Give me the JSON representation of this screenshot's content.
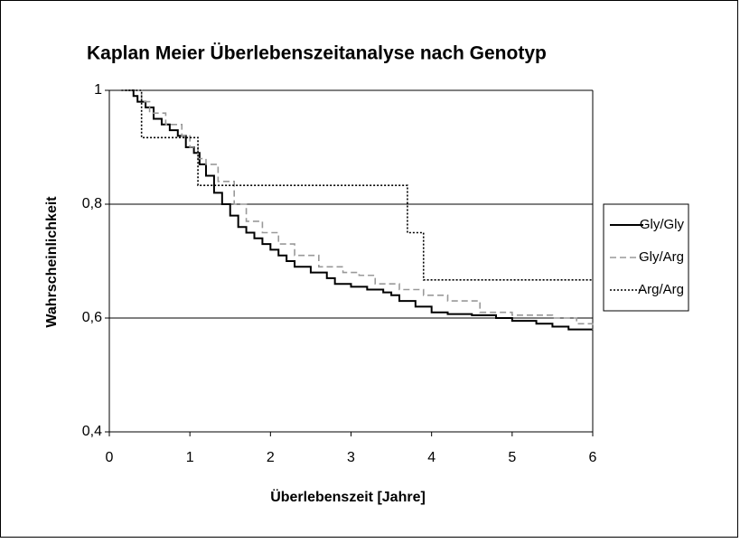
{
  "chart_data": {
    "type": "step",
    "title": "Kaplan Meier Überlebenszeitanalyse nach Genotyp",
    "x_label": "Überlebenszeit [Jahre]",
    "y_label": "Wahrscheinlichkeit",
    "xlim": [
      0,
      6
    ],
    "xticks": [
      0,
      1,
      2,
      3,
      4,
      5,
      6
    ],
    "ylim": [
      0.4,
      1
    ],
    "yticks": [
      {
        "value": 0.4,
        "label": "0,4"
      },
      {
        "value": 0.6,
        "label": "0,6"
      },
      {
        "value": 0.8,
        "label": "0,8"
      },
      1
    ],
    "grid": true,
    "legend": "right",
    "series": [
      {
        "name": "Gly/Gly",
        "color": "#000000",
        "style": "solid",
        "x": [
          0.2,
          0.3,
          0.35,
          0.45,
          0.55,
          0.65,
          0.75,
          0.85,
          0.95,
          1.05,
          1.12,
          1.2,
          1.3,
          1.4,
          1.5,
          1.6,
          1.7,
          1.8,
          1.9,
          2.0,
          2.1,
          2.2,
          2.3,
          2.5,
          2.7,
          2.8,
          3.0,
          3.2,
          3.4,
          3.5,
          3.6,
          3.8,
          4.0,
          4.2,
          4.5,
          4.8,
          5.0,
          5.3,
          5.5,
          5.7,
          6.0
        ],
        "values": [
          1,
          0.99,
          0.98,
          0.97,
          0.95,
          0.94,
          0.93,
          0.92,
          0.9,
          0.89,
          0.87,
          0.85,
          0.82,
          0.8,
          0.78,
          0.76,
          0.75,
          0.74,
          0.73,
          0.72,
          0.71,
          0.7,
          0.69,
          0.68,
          0.67,
          0.66,
          0.655,
          0.65,
          0.645,
          0.64,
          0.63,
          0.62,
          0.61,
          0.607,
          0.605,
          0.6,
          0.595,
          0.59,
          0.585,
          0.58,
          0.58
        ]
      },
      {
        "name": "Gly/Arg",
        "color": "#999999",
        "style": "dashed",
        "x": [
          0.2,
          0.4,
          0.5,
          0.7,
          0.9,
          1.0,
          1.1,
          1.2,
          1.35,
          1.55,
          1.7,
          1.9,
          2.1,
          2.3,
          2.6,
          2.9,
          3.1,
          3.3,
          3.6,
          3.9,
          4.2,
          4.6,
          5.0,
          5.5,
          5.8,
          6.0
        ],
        "values": [
          1,
          0.98,
          0.96,
          0.94,
          0.92,
          0.9,
          0.88,
          0.87,
          0.84,
          0.8,
          0.77,
          0.75,
          0.73,
          0.71,
          0.69,
          0.68,
          0.675,
          0.66,
          0.65,
          0.64,
          0.63,
          0.61,
          0.605,
          0.6,
          0.59,
          0.58
        ]
      },
      {
        "name": "Arg/Arg",
        "color": "#000000",
        "style": "dotted",
        "x": [
          0.15,
          0.4,
          1.1,
          3.7,
          3.9,
          6.0
        ],
        "values": [
          1,
          0.917,
          0.833,
          0.75,
          0.667,
          0.667
        ]
      }
    ]
  }
}
